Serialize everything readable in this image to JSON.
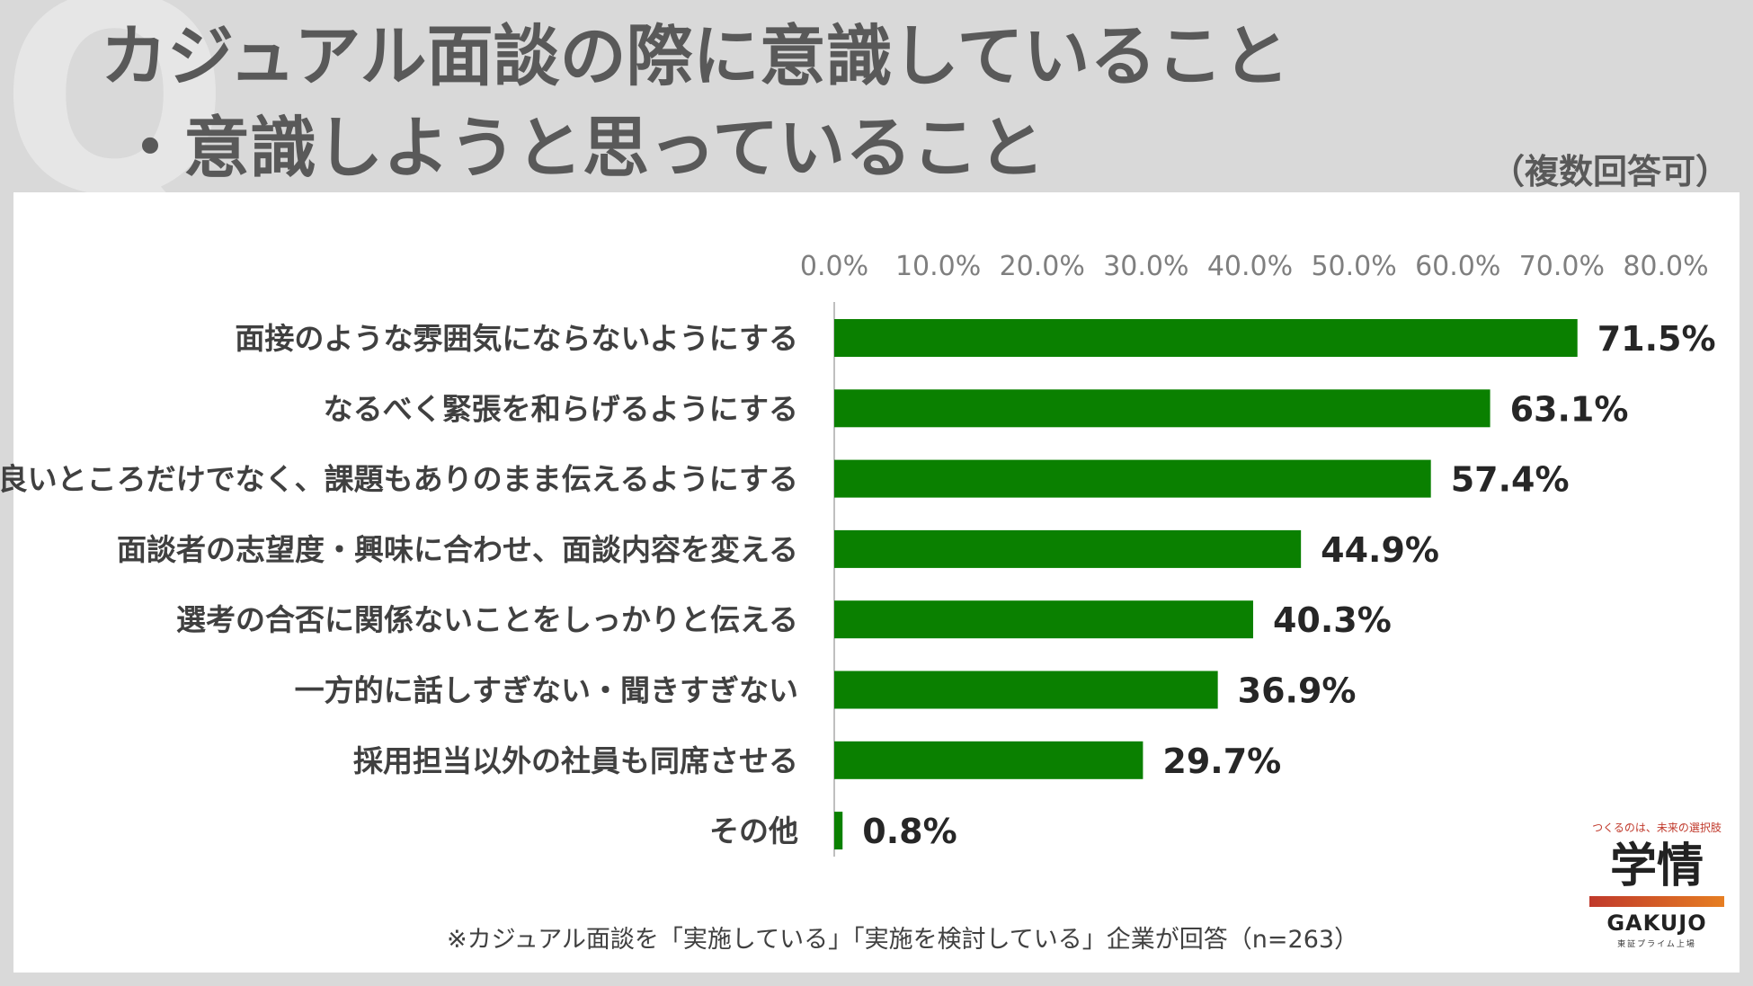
{
  "header": {
    "title_line1": "カジュアル面談の際に意識していること",
    "title_line2": "・意識しようと思っていること",
    "multi_answer_note": "（複数回答可）"
  },
  "footnote": "※カジュアル面談を「実施している」「実施を検討している」企業が回答（n=263）",
  "logo": {
    "tagline": "つくるのは、未来の選択肢",
    "kanji": "学情",
    "english": "GAKUJO",
    "sub": "東証プライム上場"
  },
  "colors": {
    "bar": "#0a8000",
    "axis_text": "#7f7f7f",
    "label_text": "#404040"
  },
  "chart_data": {
    "type": "bar",
    "orientation": "horizontal",
    "categories": [
      "面接のような雰囲気にならないようにする",
      "なるべく緊張を和らげるようにする",
      "良いところだけでなく、課題もありのまま伝えるようにする",
      "面談者の志望度・興味に合わせ、面談内容を変える",
      "選考の合否に関係ないことをしっかりと伝える",
      "一方的に話しすぎない・聞きすぎない",
      "採用担当以外の社員も同席させる",
      "その他"
    ],
    "values": [
      71.5,
      63.1,
      57.4,
      44.9,
      40.3,
      36.9,
      29.7,
      0.8
    ],
    "value_labels": [
      "71.5%",
      "63.1%",
      "57.4%",
      "44.9%",
      "40.3%",
      "36.9%",
      "29.7%",
      "0.8%"
    ],
    "xlim": [
      0,
      80
    ],
    "x_ticks": [
      0,
      10,
      20,
      30,
      40,
      50,
      60,
      70,
      80
    ],
    "x_tick_labels": [
      "0.0%",
      "10.0%",
      "20.0%",
      "30.0%",
      "40.0%",
      "50.0%",
      "60.0%",
      "70.0%",
      "80.0%"
    ],
    "axis_position": "top",
    "grid": false,
    "legend": false
  }
}
